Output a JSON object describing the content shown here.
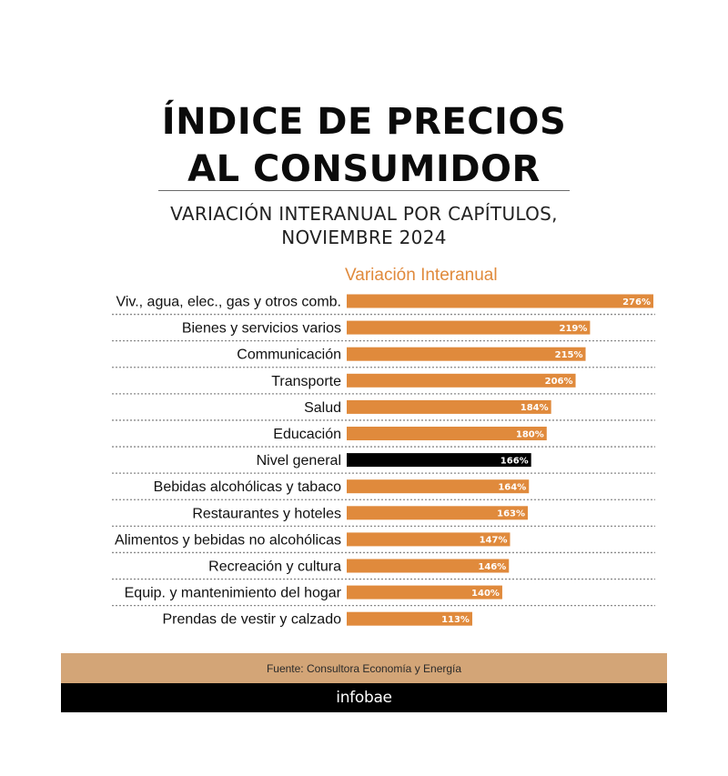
{
  "title_lines": [
    "ÍNDICE DE PRECIOS",
    "AL CONSUMIDOR"
  ],
  "subtitle_lines": [
    "VARIACIÓN INTERANUAL POR CAPÍTULOS,",
    "NOVIEMBRE 2024"
  ],
  "colors": {
    "bar": "#E08A3C",
    "highlight_bar": "#000000",
    "source_band": "#D3A577",
    "brand_band": "#000000"
  },
  "chart_data": {
    "type": "bar",
    "orientation": "horizontal",
    "legend": "Variación Interanual",
    "categories": [
      "Viv., agua, elec., gas y otros comb.",
      "Bienes y servicios varios",
      "Communicación",
      "Transporte",
      "Salud",
      "Educación",
      "Nivel general",
      "Bebidas alcohólicas y tabaco",
      "Restaurantes y hoteles",
      "Alimentos y bebidas no alcohólicas",
      "Recreación y cultura",
      "Equip. y mantenimiento del hogar",
      "Prendas de vestir y calzado"
    ],
    "values": [
      276,
      219,
      215,
      206,
      184,
      180,
      166,
      164,
      163,
      147,
      146,
      140,
      113
    ],
    "value_labels": [
      "276%",
      "219%",
      "215%",
      "206%",
      "184%",
      "180%",
      "166%",
      "164%",
      "163%",
      "147%",
      "146%",
      "140%",
      "113%"
    ],
    "highlight_category": "Nivel general",
    "unit": "%"
  },
  "footer": {
    "source": "Fuente: Consultora Economía y Energía",
    "brand": "infobae"
  }
}
